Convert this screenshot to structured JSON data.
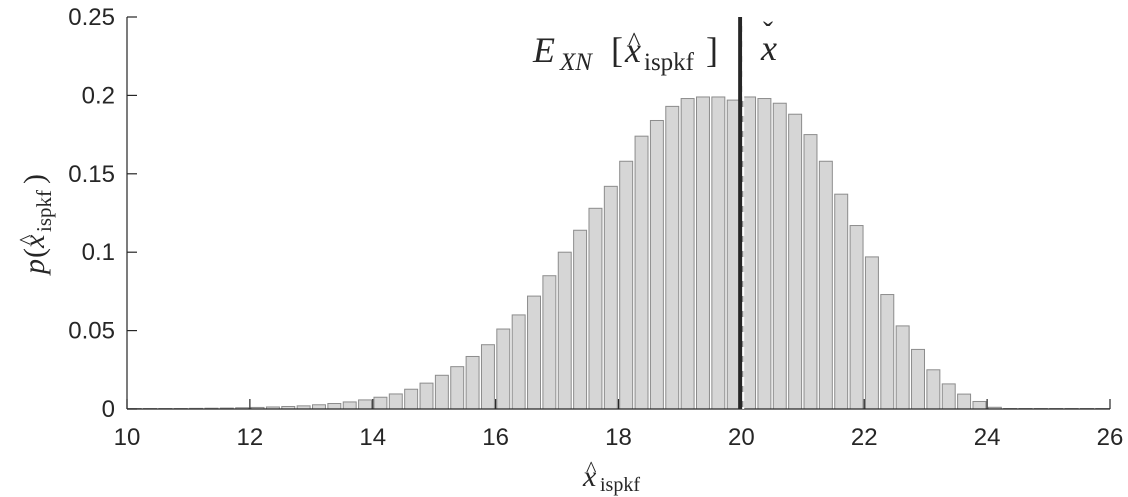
{
  "chart_data": {
    "type": "bar",
    "xlim": [
      10,
      26
    ],
    "ylim": [
      0,
      0.25
    ],
    "x_ticks": [
      "10",
      "12",
      "14",
      "16",
      "18",
      "20",
      "22",
      "24",
      "26"
    ],
    "y_ticks": [
      "0",
      "0.05",
      "0.1",
      "0.15",
      "0.2",
      "0.25"
    ],
    "bin_width": 0.25,
    "bin_centers": [
      10.125,
      10.375,
      10.625,
      10.875,
      11.125,
      11.375,
      11.625,
      11.875,
      12.125,
      12.375,
      12.625,
      12.875,
      13.125,
      13.375,
      13.625,
      13.875,
      14.125,
      14.375,
      14.625,
      14.875,
      15.125,
      15.375,
      15.625,
      15.875,
      16.125,
      16.375,
      16.625,
      16.875,
      17.125,
      17.375,
      17.625,
      17.875,
      18.125,
      18.375,
      18.625,
      18.875,
      19.125,
      19.375,
      19.625,
      19.875,
      20.125,
      20.375,
      20.625,
      20.875,
      21.125,
      21.375,
      21.625,
      21.875,
      22.125,
      22.375,
      22.625,
      22.875,
      23.125,
      23.375,
      23.625,
      23.875,
      24.125,
      24.375,
      24.625,
      24.875,
      25.125,
      25.375,
      25.625,
      25.875
    ],
    "values": [
      0.0003,
      0.0003,
      0.0003,
      0.0003,
      0.0004,
      0.0005,
      0.0006,
      0.0008,
      0.001,
      0.0013,
      0.0016,
      0.002,
      0.0027,
      0.0035,
      0.0045,
      0.0058,
      0.0075,
      0.0096,
      0.0126,
      0.0165,
      0.0215,
      0.027,
      0.0335,
      0.041,
      0.051,
      0.06,
      0.072,
      0.085,
      0.1,
      0.114,
      0.128,
      0.142,
      0.158,
      0.174,
      0.184,
      0.193,
      0.198,
      0.199,
      0.199,
      0.197,
      0.199,
      0.198,
      0.195,
      0.188,
      0.175,
      0.158,
      0.137,
      0.117,
      0.097,
      0.073,
      0.053,
      0.038,
      0.025,
      0.016,
      0.0095,
      0.0048,
      0.0011,
      0.0003,
      0.0003,
      0.0003,
      0.0003,
      0.0003,
      0.0003,
      0.0003
    ],
    "mean_line_x": 19.98,
    "true_line_x": 20.03,
    "labels": {
      "mean_E": "E",
      "mean_sub": "XN",
      "mean_open": "[",
      "mean_x": "x",
      "mean_hat": "^",
      "mean_x_sub": "ispkf",
      "mean_close": "]",
      "true_x": "x",
      "true_check": "ˇ",
      "ylabel_p": "p",
      "ylabel_open": "(",
      "ylabel_x": "x",
      "ylabel_hat": "^",
      "ylabel_sub": "ispkf",
      "ylabel_close": ")",
      "xlabel_x": "x",
      "xlabel_hat": "^",
      "xlabel_sub": "ispkf"
    }
  },
  "colors": {
    "bar_fill": "#d6d6d6",
    "bar_edge": "#8c8c8c",
    "axis": "#262626",
    "mean_line": "#262626",
    "true_line": "#ffffff"
  }
}
